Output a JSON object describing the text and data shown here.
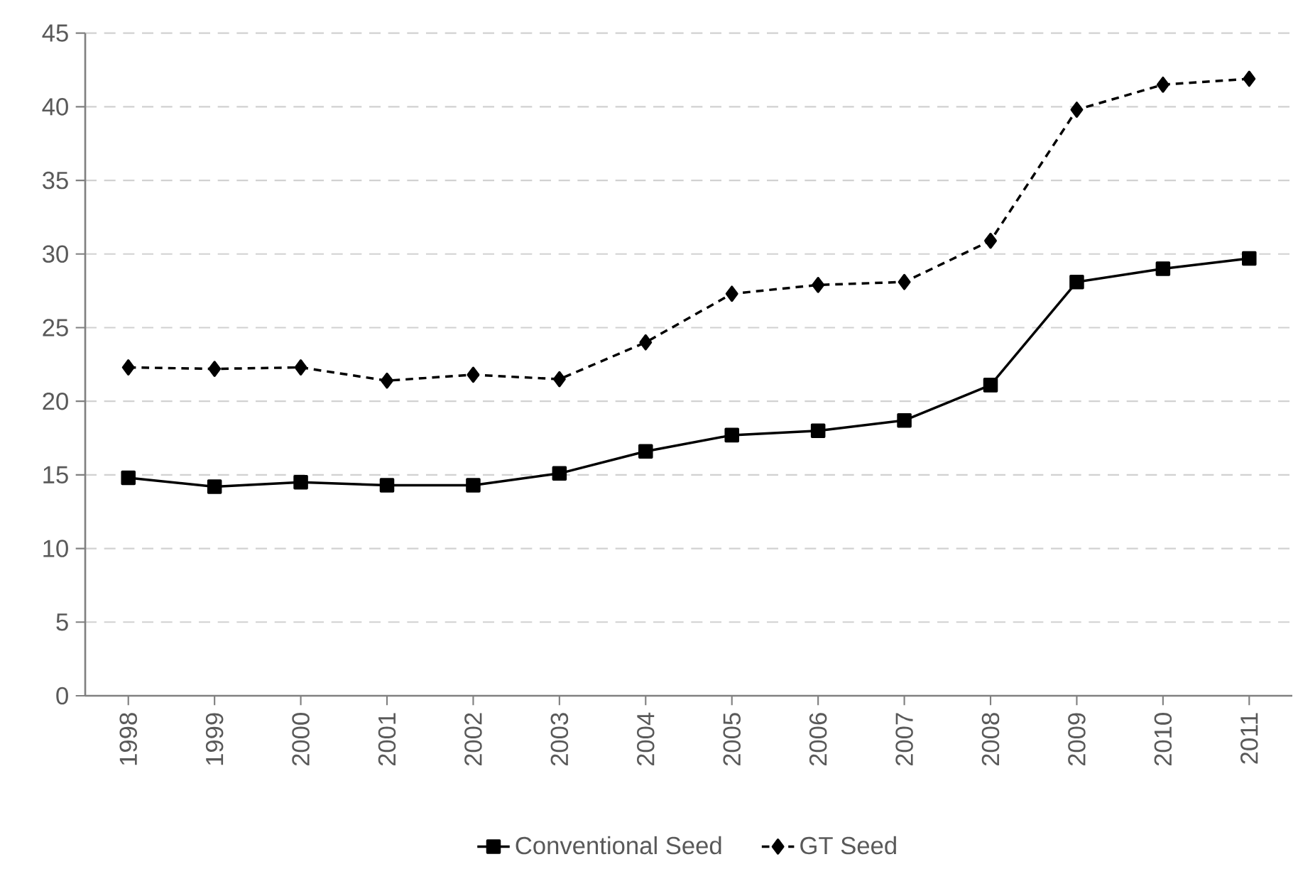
{
  "chart_data": {
    "type": "line",
    "categories": [
      "1998",
      "1999",
      "2000",
      "2001",
      "2002",
      "2003",
      "2004",
      "2005",
      "2006",
      "2007",
      "2008",
      "2009",
      "2010",
      "2011"
    ],
    "series": [
      {
        "name": "Conventional Seed",
        "color": "#000000",
        "marker": "square",
        "line_style": "solid",
        "values": [
          14.8,
          14.2,
          14.5,
          14.3,
          14.3,
          15.1,
          16.6,
          17.7,
          18.0,
          18.7,
          21.1,
          28.1,
          29.0,
          29.7
        ]
      },
      {
        "name": "GT Seed",
        "color": "#000000",
        "marker": "diamond",
        "line_style": "dashed",
        "values": [
          22.3,
          22.2,
          22.3,
          21.4,
          21.8,
          21.5,
          24.0,
          27.3,
          27.9,
          28.1,
          30.9,
          39.8,
          41.5,
          41.9
        ]
      }
    ],
    "ylim": [
      0,
      45
    ],
    "yticks": [
      0,
      5,
      10,
      15,
      20,
      25,
      30,
      35,
      40,
      45
    ],
    "grid": "y",
    "legend": "bottom"
  }
}
